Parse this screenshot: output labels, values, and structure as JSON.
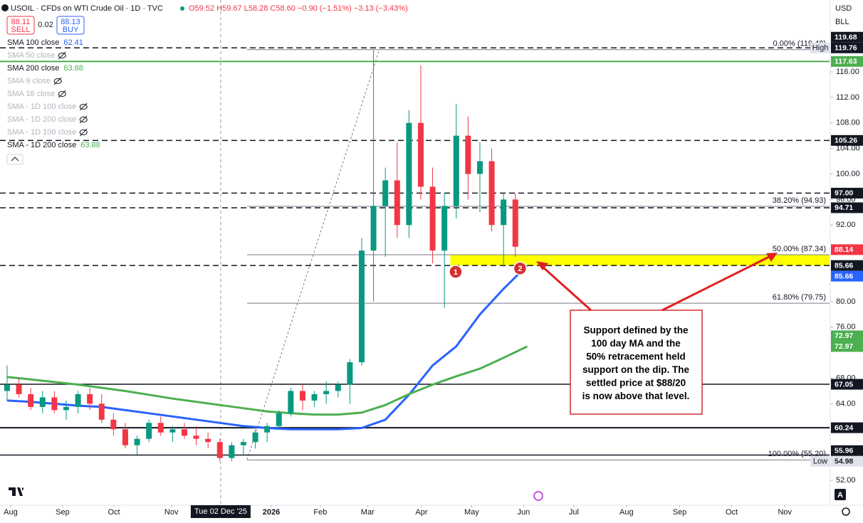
{
  "header": {
    "symbol": "USOIL · CFDs on WTI Crude Oil · 1D · TVC",
    "ohlc": [
      "O59.52",
      "H59.67",
      "L58.28",
      "C58.60",
      "−0.90 (−1.51%)",
      "−3.13 (−3.43%)"
    ],
    "sell": {
      "price": "88.11",
      "label": "SELL"
    },
    "spread": "0.02",
    "buy": {
      "price": "88.13",
      "label": "BUY"
    }
  },
  "indicators": [
    {
      "name": "SMA 100 close",
      "value": "62.41",
      "color": "#2962ff",
      "hidden": false
    },
    {
      "name": "SMA 50 close",
      "hidden": true
    },
    {
      "name": "SMA 200 close",
      "value": "63.88",
      "color": "#4caf50",
      "hidden": false
    },
    {
      "name": "SMA 9 close",
      "hidden": true
    },
    {
      "name": "SMA 18 close",
      "hidden": true
    },
    {
      "name": "SMA - 1D 100 close",
      "hidden": true
    },
    {
      "name": "SMA - 1D 200 close",
      "hidden": true
    },
    {
      "name": "SMA - 1D 100 close",
      "hidden": true
    },
    {
      "name": "SMA - 1D 200 close",
      "value": "63.88",
      "color": "#4caf50",
      "hidden": false
    }
  ],
  "axis_controls": {
    "currency": "USD",
    "unit": "BLL",
    "auto": "A"
  },
  "annotation": [
    "Support defined by the",
    "100 day MA and the",
    "50% retracement held",
    "support on the dip. The",
    "settled price at $88/20",
    "is now above that level."
  ],
  "chart_data": {
    "type": "candlestick",
    "x": [
      0,
      1,
      2,
      3,
      4,
      5,
      6,
      7,
      8,
      9,
      10,
      11,
      12,
      13,
      14,
      15,
      16,
      17,
      18,
      19,
      20,
      21,
      22,
      23,
      24,
      25,
      26,
      27,
      28,
      29,
      30,
      31,
      32,
      33,
      34,
      35,
      36,
      37,
      38,
      39,
      40,
      41,
      42,
      43
    ],
    "open": [
      66,
      67,
      65.5,
      63.5,
      65,
      63,
      63.5,
      65.5,
      64,
      61.5,
      60,
      57.5,
      58.5,
      61,
      59.5,
      60,
      59,
      58.5,
      58,
      55.5,
      57.5,
      58,
      59.5,
      60.5,
      62.5,
      66,
      64.5,
      65.5,
      66,
      67,
      70.5,
      88,
      95,
      99,
      92,
      108,
      98,
      88,
      95,
      106,
      100,
      102,
      92,
      96
    ],
    "high": [
      70,
      68,
      66.5,
      66,
      66,
      64.5,
      66,
      66.5,
      65.5,
      62.5,
      61,
      59,
      61.5,
      62,
      60.5,
      61,
      60.5,
      59.5,
      58.5,
      58,
      58.5,
      60,
      61,
      63,
      66.5,
      67,
      66,
      67.5,
      67.5,
      71,
      90,
      119.5,
      101,
      105,
      110,
      117,
      101,
      97,
      111,
      109,
      105,
      104,
      97,
      97
    ],
    "low": [
      64.5,
      65,
      63,
      62.5,
      62.5,
      61.5,
      62.5,
      63,
      61,
      59,
      57,
      56,
      58,
      59,
      58,
      58.5,
      57.5,
      57,
      55,
      54.98,
      56,
      57,
      58,
      60,
      62,
      63,
      63.5,
      64,
      65,
      64,
      70,
      80,
      87,
      90,
      90,
      96,
      86,
      79,
      93,
      96,
      94,
      91,
      85.5,
      87
    ],
    "close": [
      67,
      65.5,
      63.5,
      65,
      63,
      63.5,
      65.5,
      64,
      61.5,
      60,
      57.5,
      58.5,
      61,
      59.5,
      60,
      59,
      58.5,
      58,
      55.5,
      57.5,
      58,
      59.5,
      60.5,
      62.5,
      66,
      64.5,
      65.5,
      66,
      67,
      70.5,
      88,
      95,
      99,
      92,
      108,
      98,
      88,
      95,
      106,
      100,
      102,
      92,
      96,
      88.6
    ],
    "up_color": "#089981",
    "down_color": "#f23645",
    "lines": [
      {
        "color": "#2962ff",
        "x": [
          0,
          2,
          4,
          6,
          8,
          10,
          12,
          14,
          16,
          18,
          20,
          22,
          24,
          26,
          28,
          30,
          32,
          34,
          36,
          38,
          40,
          42,
          44
        ],
        "values": [
          64.5,
          64.3,
          64,
          63.7,
          63.5,
          63,
          62.5,
          62,
          61.5,
          61,
          60.5,
          60.2,
          60,
          60,
          60,
          60.2,
          61.5,
          65.4,
          70,
          73,
          78,
          82,
          85.66
        ]
      },
      {
        "color": "#4caf50",
        "x": [
          0,
          2,
          4,
          6,
          8,
          10,
          12,
          14,
          16,
          18,
          20,
          22,
          24,
          26,
          28,
          30,
          32,
          34,
          36,
          38,
          40,
          42,
          44
        ],
        "values": [
          68.2,
          67.8,
          67.4,
          67,
          66.5,
          66,
          65.4,
          64.8,
          64.3,
          63.8,
          63.3,
          62.8,
          62.5,
          62.3,
          62.3,
          62.6,
          63.8,
          65.5,
          67,
          68.3,
          69.5,
          71.2,
          72.97
        ]
      }
    ],
    "xlim": [
      -0.6,
      69.58
    ],
    "ylim": [
      48.1,
      127.26
    ],
    "yticks": [
      {
        "value": 116,
        "label": "116.00"
      },
      {
        "value": 112,
        "label": "112.00"
      },
      {
        "value": 108,
        "label": "108.00"
      },
      {
        "value": 104,
        "label": "104.00"
      },
      {
        "value": 100,
        "label": "100.00"
      },
      {
        "value": 96,
        "label": "96.00"
      },
      {
        "value": 92,
        "label": "92.00"
      },
      {
        "value": 80,
        "label": "80.00"
      },
      {
        "value": 76,
        "label": "76.00"
      },
      {
        "value": 68,
        "label": "68.00"
      },
      {
        "value": 64,
        "label": "64.00"
      },
      {
        "value": 52,
        "label": "52.00"
      }
    ],
    "xticks": [
      {
        "value": 0.3,
        "label": "Aug"
      },
      {
        "value": 4.7,
        "label": "Sep"
      },
      {
        "value": 9.04,
        "label": "Oct"
      },
      {
        "value": 13.9,
        "label": "Nov"
      },
      {
        "value": 22.35,
        "label": "2026"
      },
      {
        "value": 26.5,
        "label": "Feb"
      },
      {
        "value": 30.5,
        "label": "Mar"
      },
      {
        "value": 35.06,
        "label": "Apr"
      },
      {
        "value": 39.3,
        "label": "May"
      },
      {
        "value": 43.7,
        "label": "Jun"
      },
      {
        "value": 47.95,
        "label": "Jul"
      },
      {
        "value": 52.4,
        "label": "Aug"
      },
      {
        "value": 56.9,
        "label": "Sep"
      },
      {
        "value": 61.3,
        "label": "Oct"
      },
      {
        "value": 65.8,
        "label": "Nov"
      }
    ],
    "crosshair": {
      "x": 18.07,
      "label": "Tue 02 Dec '25"
    },
    "price_tags": [
      {
        "value": 119.68,
        "label": "119.68",
        "bg": "#131722"
      },
      {
        "value": 119.76,
        "label": "119.76",
        "bg": "#131722",
        "line": "dash",
        "side_label": "High"
      },
      {
        "value": 117.63,
        "label": "117.63",
        "bg": "#4caf50",
        "line": "solid",
        "line_color": "#4caf50",
        "line_width": 2
      },
      {
        "value": 105.26,
        "label": "105.26",
        "bg": "#131722",
        "line": "dash"
      },
      {
        "value": 97,
        "label": "97.00",
        "bg": "#131722",
        "line": "dash"
      },
      {
        "value": 94.71,
        "label": "94.71",
        "bg": "#131722",
        "line": "dash"
      },
      {
        "value": 88.14,
        "label": "88.14",
        "bg": "#f23645"
      },
      {
        "value": 85.66,
        "label": "85.66",
        "bg": "#131722",
        "line": "dash"
      },
      {
        "value": 85.66,
        "label": "85.66",
        "bg": "#2962ff"
      },
      {
        "value": 72.97,
        "label": "72.97",
        "bg": "#4caf50"
      },
      {
        "value": 72.97,
        "label": "72.97",
        "bg": "#4caf50"
      },
      {
        "value": 67.05,
        "label": "67.05",
        "bg": "#131722",
        "line": "solid"
      },
      {
        "value": 60.24,
        "label": "60.24",
        "bg": "#131722",
        "line": "solid",
        "line_width": 2
      },
      {
        "value": 55.96,
        "label": "55.96",
        "bg": "#131722",
        "line": "solid"
      },
      {
        "value": 54.98,
        "label": "54.98",
        "bg": "#e0e3eb",
        "fg": "#131722",
        "side_label": "Low"
      }
    ],
    "fib": {
      "x_start": 20.3,
      "x_end": 31.5,
      "levels": [
        {
          "value": 119.48,
          "label": "0.00% (119.48)"
        },
        {
          "value": 94.93,
          "label": "38.20% (94.93)"
        },
        {
          "value": 87.34,
          "label": "50.00% (87.34)"
        },
        {
          "value": 79.75,
          "label": "61.80% (79.75)"
        },
        {
          "value": 55.2,
          "label": "100.00% (55.20)"
        }
      ]
    },
    "zone": {
      "from": 85.66,
      "to": 87.34,
      "x_start": 37.5,
      "color": "#ffff00"
    },
    "markers": [
      {
        "label": "1",
        "x": 37.95,
        "y": 84.67
      },
      {
        "label": "2",
        "x": 43.4,
        "y": 85.2
      }
    ]
  }
}
